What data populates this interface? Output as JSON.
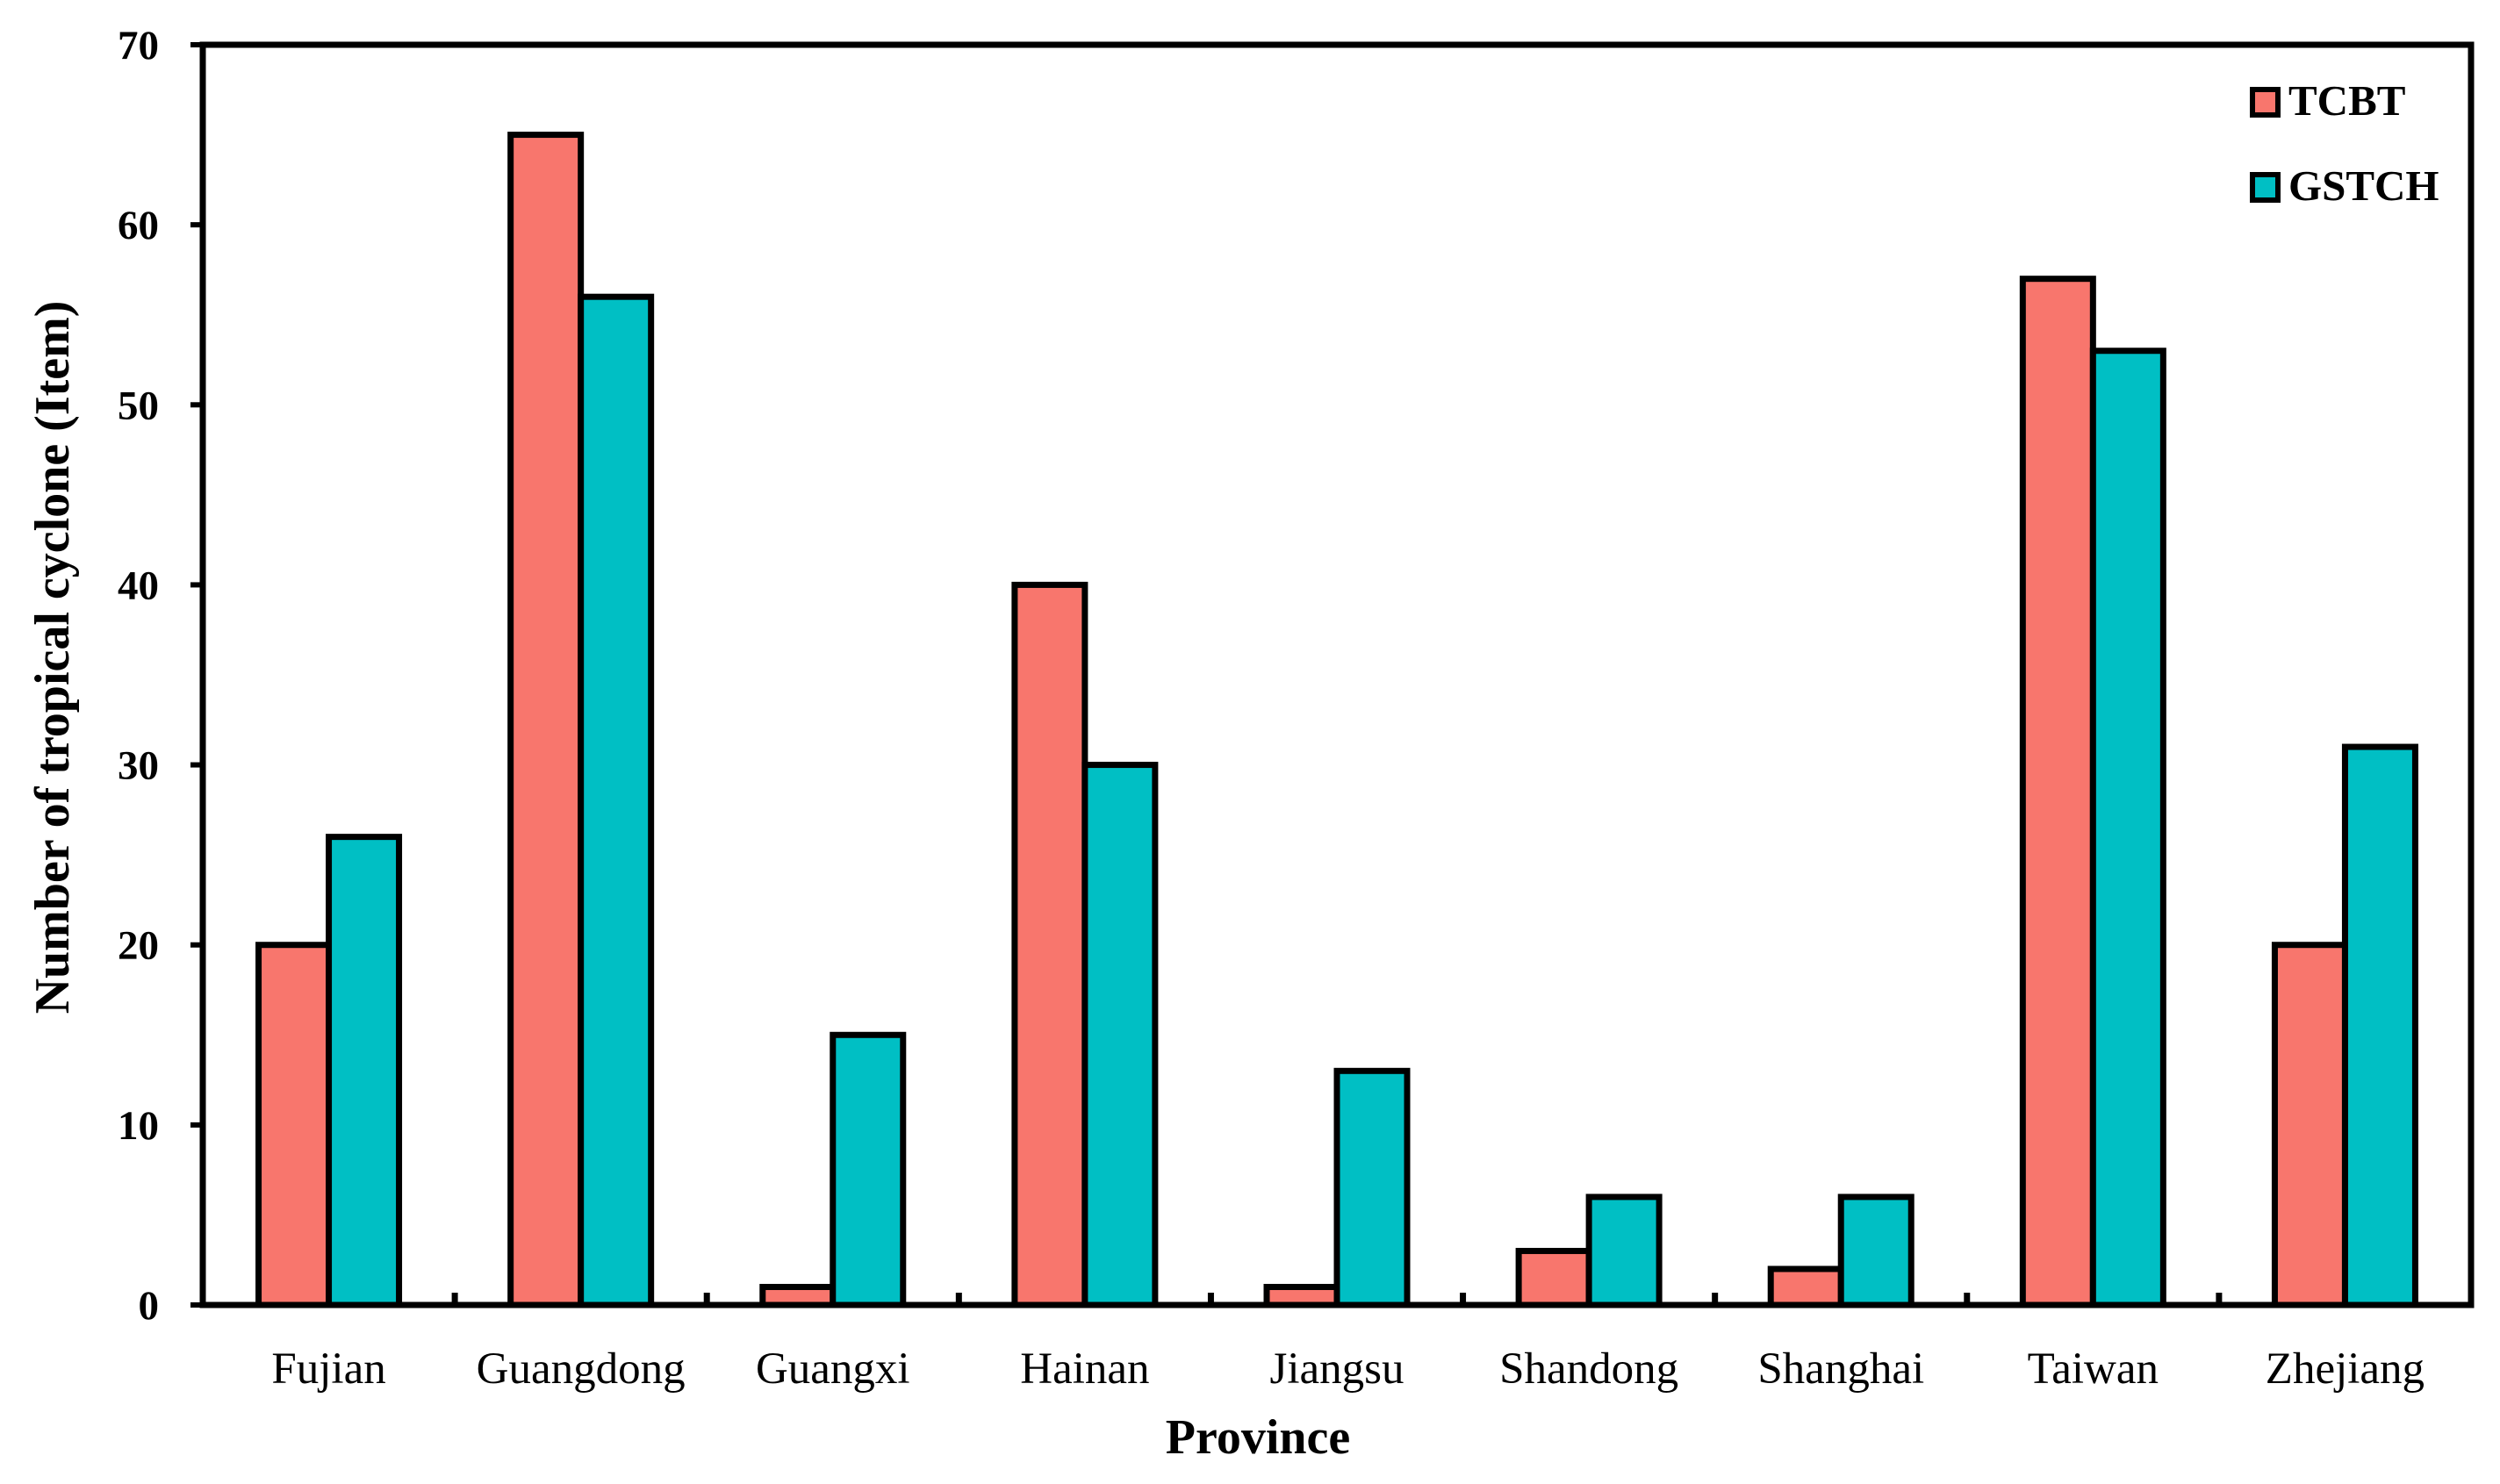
{
  "chart_data": {
    "type": "bar",
    "categories": [
      "Fujian",
      "Guangdong",
      "Guangxi",
      "Hainan",
      "Jiangsu",
      "Shandong",
      "Shanghai",
      "Taiwan",
      "Zhejiang"
    ],
    "series": [
      {
        "name": "TCBT",
        "color": "#F8766D",
        "values": [
          20,
          65,
          1,
          40,
          1,
          3,
          2,
          57,
          20
        ]
      },
      {
        "name": "GSTCH",
        "color": "#00BFC4",
        "values": [
          26,
          56,
          15,
          30,
          13,
          6,
          6,
          53,
          31
        ]
      }
    ],
    "xlabel": "Province",
    "ylabel": "Number of tropical cyclone (Item)",
    "ylim": [
      0,
      70
    ],
    "yticks": [
      "0",
      "10",
      "20",
      "30",
      "40",
      "50",
      "60",
      "70"
    ],
    "grid": false,
    "legend_position": "top-right"
  }
}
